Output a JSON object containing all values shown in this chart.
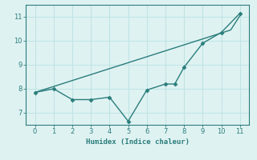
{
  "xlabel": "Humidex (Indice chaleur)",
  "line1_x": [
    0,
    1,
    2,
    3,
    4,
    5,
    6,
    7,
    7.5,
    8,
    9,
    10,
    11
  ],
  "line1_y": [
    7.85,
    8.0,
    7.55,
    7.55,
    7.65,
    6.65,
    7.95,
    8.2,
    8.2,
    8.9,
    9.9,
    10.35,
    11.15
  ],
  "line2_x": [
    0,
    10.5,
    11
  ],
  "line2_y": [
    7.85,
    10.45,
    11.05
  ],
  "line_color": "#2a7d7b",
  "bg_color": "#dff2f2",
  "grid_color": "#c0e4e4",
  "xlim": [
    -0.5,
    11.5
  ],
  "ylim": [
    6.5,
    11.5
  ],
  "xticks": [
    0,
    1,
    2,
    3,
    4,
    5,
    6,
    7,
    8,
    9,
    10,
    11
  ],
  "yticks": [
    7,
    8,
    9,
    10,
    11
  ]
}
